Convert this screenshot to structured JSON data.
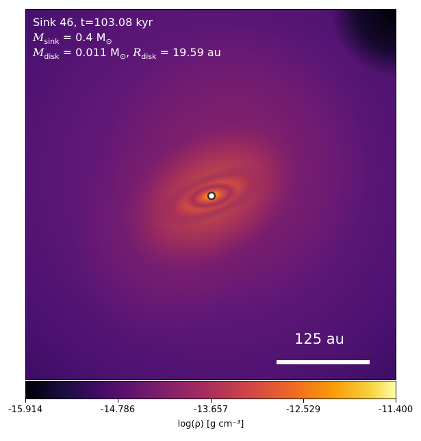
{
  "annotation": {
    "title": "Sink 46, t=103.08 kyr",
    "msink_label": "M",
    "msink_sub": "sink",
    "msink_value": " = 0.4 M",
    "msink_unit_sub": "⊙",
    "mdisk_label": "M",
    "mdisk_sub": "disk",
    "mdisk_value": " = 0.011 M",
    "mdisk_unit_sub": "⊙",
    "rdisk_sep": ", ",
    "rdisk_label": "R",
    "rdisk_sub": "disk",
    "rdisk_value": " = 19.59 au"
  },
  "scalebar": {
    "label": "125 au"
  },
  "colorbar": {
    "ticks": [
      "-15.914",
      "-14.786",
      "-13.657",
      "-12.529",
      "-11.400"
    ],
    "label": "log(ρ) [g cm⁻³]",
    "colormap": "inferno"
  },
  "colors": {
    "background": "#4b1470",
    "core": "#f7a21a",
    "sink_marker_fill": "#ffffff",
    "sink_marker_edge": "#333333"
  }
}
